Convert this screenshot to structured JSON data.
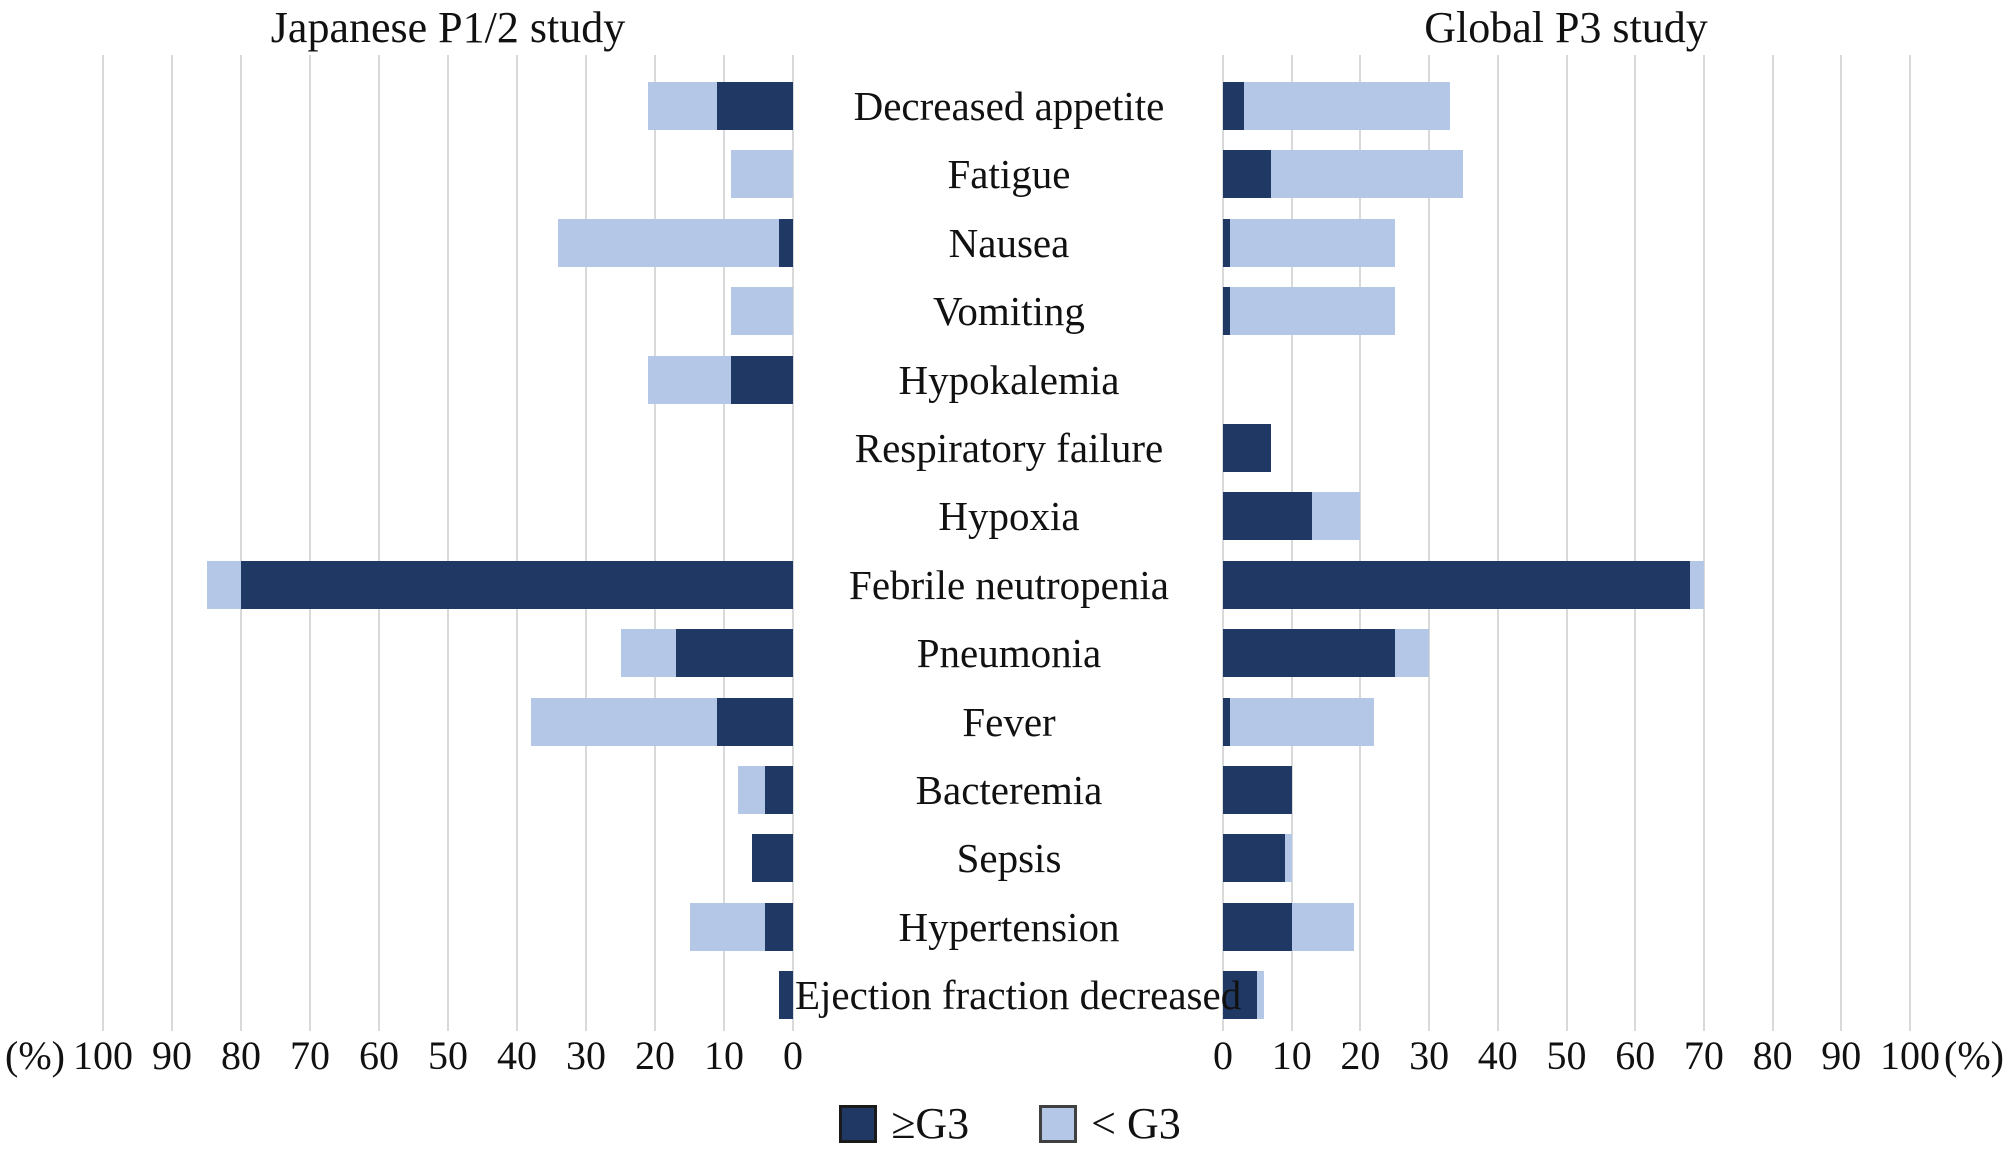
{
  "chart_data": {
    "type": "bar",
    "variant": "butterfly-stacked-horizontal",
    "categories": [
      "Decreased appetite",
      "Fatigue",
      "Nausea",
      "Vomiting",
      "Hypokalemia",
      "Respiratory failure",
      "Hypoxia",
      "Febrile neutropenia",
      "Pneumonia",
      "Fever",
      "Bacteremia",
      "Sepsis",
      "Hypertension",
      "Ejection fraction decreased"
    ],
    "axis_unit": "(%)",
    "xlim": [
      0,
      100
    ],
    "grid": true,
    "legend_position": "bottom-center",
    "panels": [
      {
        "title": "Japanese P1/2 study",
        "side": "left",
        "axis_ticks": [
          100,
          90,
          80,
          70,
          60,
          50,
          40,
          30,
          20,
          10,
          0
        ],
        "series": [
          {
            "name": "≥G3",
            "values": [
              11,
              0,
              2,
              0,
              9,
              0,
              0,
              80,
              17,
              11,
              4,
              6,
              4,
              2
            ]
          },
          {
            "name": "<G3",
            "values": [
              10,
              9,
              32,
              9,
              12,
              0,
              0,
              5,
              8,
              27,
              4,
              0,
              11,
              0
            ]
          }
        ]
      },
      {
        "title": "Global P3 study",
        "side": "right",
        "axis_ticks": [
          0,
          10,
          20,
          30,
          40,
          50,
          60,
          70,
          80,
          90,
          100
        ],
        "series": [
          {
            "name": "≥G3",
            "values": [
              3,
              7,
              1,
              1,
              0,
              7,
              13,
              68,
              25,
              1,
              10,
              9,
              10,
              5
            ]
          },
          {
            "name": "<G3",
            "values": [
              30,
              28,
              24,
              24,
              0,
              0,
              7,
              2,
              5,
              21,
              0,
              1,
              9,
              1
            ]
          }
        ]
      }
    ],
    "legend": [
      {
        "label": "≥G3",
        "color": "#1F3864"
      },
      {
        "label": "< G3",
        "color": "#B4C7E7"
      }
    ],
    "colors": {
      "ge_g3": "#1F3864",
      "lt_g3": "#B4C7E7",
      "gridline": "#D9D9D9"
    }
  },
  "left_title": "Japanese P1/2 study",
  "right_title": "Global P3 study",
  "left_unit_label": "(%)",
  "right_unit_label": "(%)",
  "legend_ge_label": "≥G3",
  "legend_lt_label": "< G3"
}
